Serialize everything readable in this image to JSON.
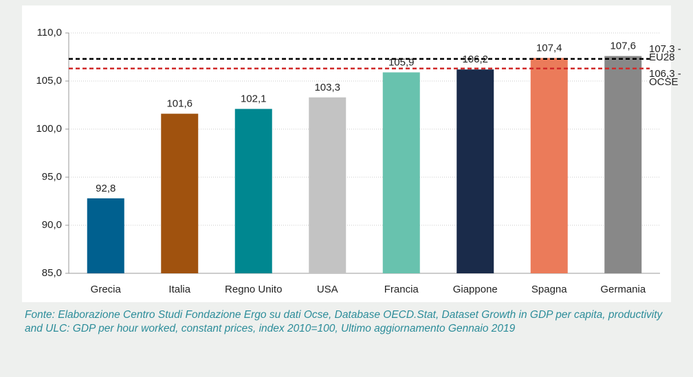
{
  "chart_data": {
    "type": "bar",
    "categories": [
      "Grecia",
      "Italia",
      "Regno Unito",
      "USA",
      "Francia",
      "Giappone",
      "Spagna",
      "Germania"
    ],
    "values": [
      92.8,
      101.6,
      102.1,
      103.3,
      105.9,
      106.2,
      107.4,
      107.6
    ],
    "value_labels": [
      "92,8",
      "101,6",
      "102,1",
      "103,3",
      "105,9",
      "106,2",
      "107,4",
      "107,6"
    ],
    "colors": [
      "#00608f",
      "#a0520e",
      "#008790",
      "#c3c3c3",
      "#68c2ae",
      "#1a2b4a",
      "#eb7b5a",
      "#888888"
    ],
    "ylim": [
      85,
      110
    ],
    "yticks": [
      {
        "value": 85,
        "label": "85,0"
      },
      {
        "value": 90,
        "label": "90,0"
      },
      {
        "value": 95,
        "label": "95,0"
      },
      {
        "value": 100,
        "label": "100,0"
      },
      {
        "value": 105,
        "label": "105,0"
      },
      {
        "value": 110,
        "label": "110,0"
      }
    ],
    "grid": true,
    "reference_lines": [
      {
        "value": 107.3,
        "label": [
          "107,3 -",
          "EU28"
        ],
        "color": "#000000"
      },
      {
        "value": 106.3,
        "label": [
          "106,3 -",
          "OCSE"
        ],
        "color": "#d12a2a"
      }
    ],
    "source": "Fonte: Elaborazione Centro Studi Fondazione Ergo su dati Ocse, Database OECD.Stat, Dataset Growth in GDP per capita, productivity and ULC: GDP per hour worked, constant prices, index 2010=100, Ultimo aggiornamento Gennaio 2019"
  }
}
